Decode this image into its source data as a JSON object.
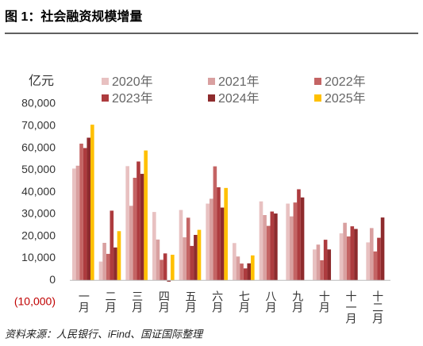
{
  "chart_data": {
    "type": "bar",
    "title": "图 1：社会融资规模增量",
    "unit_label": "亿元",
    "source": "资料来源：人民银行、iFind、国证国际整理",
    "categories": [
      "一月",
      "二月",
      "三月",
      "四月",
      "五月",
      "六月",
      "七月",
      "八月",
      "九月",
      "十月",
      "十一月",
      "十二月"
    ],
    "series": [
      {
        "name": "2020年",
        "color": "#e8c1c1",
        "values": [
          50700,
          8500,
          51800,
          31000,
          31900,
          34800,
          16900,
          35800,
          34800,
          14000,
          21300,
          17200
        ]
      },
      {
        "name": "2021年",
        "color": "#d9a0a0",
        "values": [
          52000,
          17000,
          33800,
          18500,
          19500,
          37000,
          10800,
          29600,
          29000,
          16200,
          26100,
          23700
        ]
      },
      {
        "name": "2022年",
        "color": "#c46464",
        "values": [
          62000,
          12000,
          46500,
          9300,
          28400,
          51700,
          7600,
          24700,
          35300,
          9100,
          19900,
          13100
        ]
      },
      {
        "name": "2023年",
        "color": "#ad3b3e",
        "values": [
          60000,
          31600,
          53900,
          12200,
          15600,
          42200,
          5400,
          31200,
          41300,
          18400,
          24500,
          19300
        ]
      },
      {
        "name": "2024年",
        "color": "#8e2b2d",
        "values": [
          64700,
          14900,
          48300,
          -600,
          20600,
          33000,
          7700,
          30300,
          37600,
          14000,
          23300,
          28500
        ]
      },
      {
        "name": "2025年",
        "color": "#ffc000",
        "values": [
          70600,
          22300,
          58900,
          11600,
          22900,
          41900,
          11300,
          null,
          null,
          null,
          null,
          null
        ]
      }
    ],
    "ylim": [
      -10000,
      80000
    ],
    "yticks": [
      {
        "value": -10000,
        "label": "(10,000)"
      },
      0,
      {
        "value": 10000,
        "label": "10,000"
      },
      {
        "value": 20000,
        "label": "20,000"
      },
      {
        "value": 30000,
        "label": "30,000"
      },
      {
        "value": 40000,
        "label": "40,000"
      },
      {
        "value": 50000,
        "label": "50,000"
      },
      {
        "value": 60000,
        "label": "60,000"
      },
      {
        "value": 70000,
        "label": "70,000"
      },
      {
        "value": 80000,
        "label": "80,000"
      }
    ],
    "negative_tick_color": "#c00000",
    "grid": false
  }
}
